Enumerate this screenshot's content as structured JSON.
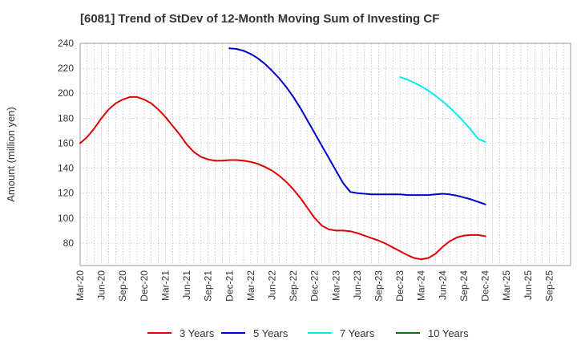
{
  "chart_data": {
    "type": "line",
    "title": "[6081]  Trend of StDev of 12-Month Moving Sum of Investing CF",
    "xlabel": "",
    "ylabel": "Amount (million yen)",
    "ylim": [
      62,
      240
    ],
    "yticks": [
      80,
      100,
      120,
      140,
      160,
      180,
      200,
      220,
      240
    ],
    "x_range": [
      "2020-03",
      "2025-12"
    ],
    "xticks": [
      "Mar-20",
      "Jun-20",
      "Sep-20",
      "Dec-20",
      "Mar-21",
      "Jun-21",
      "Sep-21",
      "Dec-21",
      "Mar-22",
      "Jun-22",
      "Sep-22",
      "Dec-22",
      "Mar-23",
      "Jun-23",
      "Sep-23",
      "Dec-23",
      "Mar-24",
      "Jun-24",
      "Sep-24",
      "Dec-24",
      "Mar-25",
      "Jun-25",
      "Sep-25"
    ],
    "grid": true,
    "legend_position": "bottom",
    "series": [
      {
        "name": "3 Years",
        "color": "#dd0000",
        "points": [
          [
            "2020-03",
            160
          ],
          [
            "2020-04",
            165
          ],
          [
            "2020-05",
            172
          ],
          [
            "2020-06",
            180
          ],
          [
            "2020-07",
            187
          ],
          [
            "2020-08",
            192
          ],
          [
            "2020-09",
            195
          ],
          [
            "2020-10",
            197
          ],
          [
            "2020-11",
            197
          ],
          [
            "2020-12",
            195
          ],
          [
            "2021-01",
            192
          ],
          [
            "2021-02",
            187
          ],
          [
            "2021-03",
            181
          ],
          [
            "2021-04",
            174
          ],
          [
            "2021-05",
            167
          ],
          [
            "2021-06",
            159
          ],
          [
            "2021-07",
            153
          ],
          [
            "2021-08",
            149
          ],
          [
            "2021-09",
            147
          ],
          [
            "2021-10",
            146
          ],
          [
            "2021-11",
            146
          ],
          [
            "2021-12",
            146.5
          ],
          [
            "2022-01",
            146.5
          ],
          [
            "2022-02",
            146
          ],
          [
            "2022-03",
            145
          ],
          [
            "2022-04",
            143.5
          ],
          [
            "2022-05",
            141
          ],
          [
            "2022-06",
            138
          ],
          [
            "2022-07",
            134
          ],
          [
            "2022-08",
            129
          ],
          [
            "2022-09",
            123
          ],
          [
            "2022-10",
            116
          ],
          [
            "2022-11",
            108
          ],
          [
            "2022-12",
            100
          ],
          [
            "2023-01",
            94
          ],
          [
            "2023-02",
            91
          ],
          [
            "2023-03",
            90
          ],
          [
            "2023-04",
            90
          ],
          [
            "2023-05",
            89.5
          ],
          [
            "2023-06",
            88
          ],
          [
            "2023-07",
            86
          ],
          [
            "2023-08",
            84
          ],
          [
            "2023-09",
            82
          ],
          [
            "2023-10",
            79.5
          ],
          [
            "2023-11",
            76.5
          ],
          [
            "2023-12",
            73.5
          ],
          [
            "2024-01",
            70.5
          ],
          [
            "2024-02",
            68
          ],
          [
            "2024-03",
            67
          ],
          [
            "2024-04",
            68
          ],
          [
            "2024-05",
            71.5
          ],
          [
            "2024-06",
            77
          ],
          [
            "2024-07",
            81.5
          ],
          [
            "2024-08",
            84.5
          ],
          [
            "2024-09",
            86
          ],
          [
            "2024-10",
            86.5
          ],
          [
            "2024-11",
            86.5
          ],
          [
            "2024-12",
            85.5
          ]
        ]
      },
      {
        "name": "5 Years",
        "color": "#0000cc",
        "points": [
          [
            "2021-12",
            236
          ],
          [
            "2022-01",
            235.5
          ],
          [
            "2022-02",
            234
          ],
          [
            "2022-03",
            231.5
          ],
          [
            "2022-04",
            228
          ],
          [
            "2022-05",
            223.5
          ],
          [
            "2022-06",
            218
          ],
          [
            "2022-07",
            212
          ],
          [
            "2022-08",
            205
          ],
          [
            "2022-09",
            197
          ],
          [
            "2022-10",
            188
          ],
          [
            "2022-11",
            178
          ],
          [
            "2022-12",
            168
          ],
          [
            "2023-01",
            158
          ],
          [
            "2023-02",
            148
          ],
          [
            "2023-03",
            138
          ],
          [
            "2023-04",
            128
          ],
          [
            "2023-05",
            121
          ],
          [
            "2023-06",
            120
          ],
          [
            "2023-07",
            119.5
          ],
          [
            "2023-08",
            119
          ],
          [
            "2023-09",
            119
          ],
          [
            "2023-10",
            119
          ],
          [
            "2023-11",
            119
          ],
          [
            "2023-12",
            119
          ],
          [
            "2024-01",
            118.5
          ],
          [
            "2024-02",
            118.5
          ],
          [
            "2024-03",
            118.5
          ],
          [
            "2024-04",
            118.5
          ],
          [
            "2024-05",
            119
          ],
          [
            "2024-06",
            119.5
          ],
          [
            "2024-07",
            119
          ],
          [
            "2024-08",
            118
          ],
          [
            "2024-09",
            116.5
          ],
          [
            "2024-10",
            115
          ],
          [
            "2024-11",
            113
          ],
          [
            "2024-12",
            111
          ]
        ]
      },
      {
        "name": "7 Years",
        "color": "#00eeee",
        "points": [
          [
            "2023-12",
            213
          ],
          [
            "2024-01",
            211
          ],
          [
            "2024-02",
            208.5
          ],
          [
            "2024-03",
            205.5
          ],
          [
            "2024-04",
            202
          ],
          [
            "2024-05",
            198
          ],
          [
            "2024-06",
            193.5
          ],
          [
            "2024-07",
            188.5
          ],
          [
            "2024-08",
            183
          ],
          [
            "2024-09",
            177
          ],
          [
            "2024-10",
            170.5
          ],
          [
            "2024-11",
            163.5
          ],
          [
            "2024-12",
            161
          ]
        ]
      },
      {
        "name": "10 Years",
        "color": "#007700",
        "points": []
      }
    ]
  }
}
